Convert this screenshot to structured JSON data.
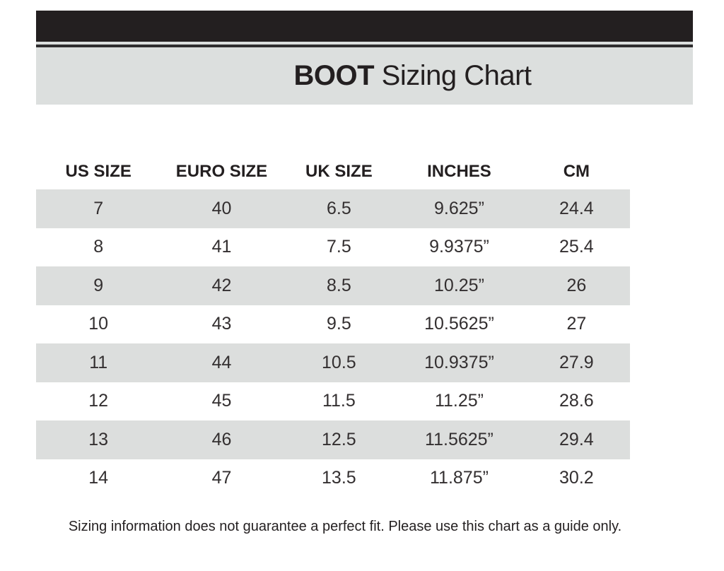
{
  "header": {
    "title_bold": "BOOT",
    "title_regular": " Sizing Chart"
  },
  "footer": {
    "note": "Sizing information does not guarantee a perfect fit. Please use this chart as a guide only."
  },
  "colors": {
    "top_bar": "#231f20",
    "band_gray": "#dcdfde",
    "row_shaded_gray": "#dcdedd",
    "text_dark": "#231f20"
  },
  "chart_data": {
    "type": "table",
    "title": "BOOT Sizing Chart",
    "columns": [
      "US SIZE",
      "EURO SIZE",
      "UK SIZE",
      "INCHES",
      "CM"
    ],
    "rows": [
      [
        "7",
        "40",
        "6.5",
        "9.625”",
        "24.4"
      ],
      [
        "8",
        "41",
        "7.5",
        "9.9375”",
        "25.4"
      ],
      [
        "9",
        "42",
        "8.5",
        "10.25”",
        "26"
      ],
      [
        "10",
        "43",
        "9.5",
        "10.5625”",
        "27"
      ],
      [
        "11",
        "44",
        "10.5",
        "10.9375”",
        "27.9"
      ],
      [
        "12",
        "45",
        "11.5",
        "11.25”",
        "28.6"
      ],
      [
        "13",
        "46",
        "12.5",
        "11.5625”",
        "29.4"
      ],
      [
        "14",
        "47",
        "13.5",
        "11.875”",
        "30.2"
      ]
    ],
    "shaded_row_indices": [
      0,
      2,
      4,
      6
    ],
    "layout": {
      "grid": false,
      "row_striping": "first-row-shaded-then-alternate"
    }
  }
}
